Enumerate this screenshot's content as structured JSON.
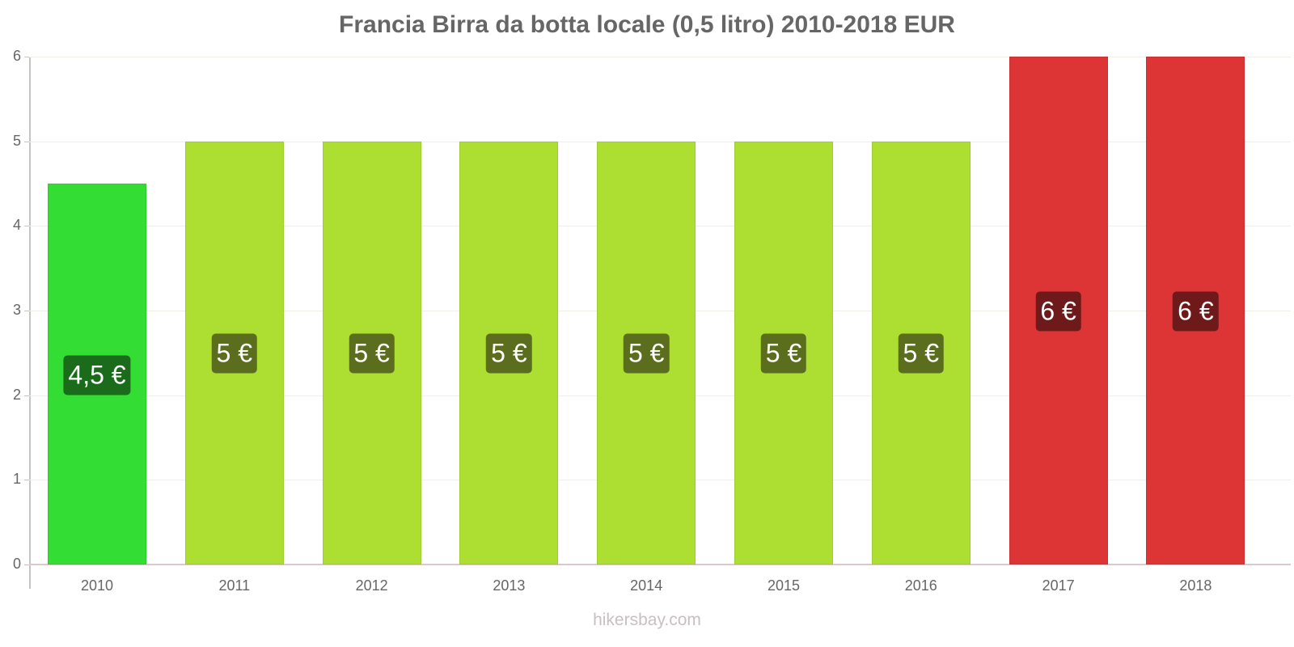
{
  "chart_data": {
    "type": "bar",
    "title": "Francia Birra da botta locale (0,5 litro) 2010-2018 EUR",
    "xlabel": "",
    "ylabel": "",
    "ylim": [
      0,
      6
    ],
    "yticks": [
      "0",
      "1",
      "2",
      "3",
      "4",
      "5",
      "6"
    ],
    "grid": true,
    "legend": null,
    "categories": [
      "2010",
      "2011",
      "2012",
      "2013",
      "2014",
      "2015",
      "2016",
      "2017",
      "2018"
    ],
    "values": [
      4.5,
      5,
      5,
      5,
      5,
      5,
      5,
      6,
      6
    ],
    "data_labels": [
      "4,5 €",
      "5 €",
      "5 €",
      "5 €",
      "5 €",
      "5 €",
      "5 €",
      "6 €",
      "6 €"
    ],
    "bar_colors": [
      "#33dd33",
      "#addf33",
      "#addf33",
      "#addf33",
      "#addf33",
      "#addf33",
      "#addf33",
      "#dd3535",
      "#dd3535"
    ],
    "label_bg_colors": [
      "#1a6b1a",
      "#5a6e1e",
      "#5a6e1e",
      "#5a6e1e",
      "#5a6e1e",
      "#5a6e1e",
      "#5a6e1e",
      "#6e1a1a",
      "#6e1a1a"
    ],
    "watermark": "hikersbay.com"
  }
}
